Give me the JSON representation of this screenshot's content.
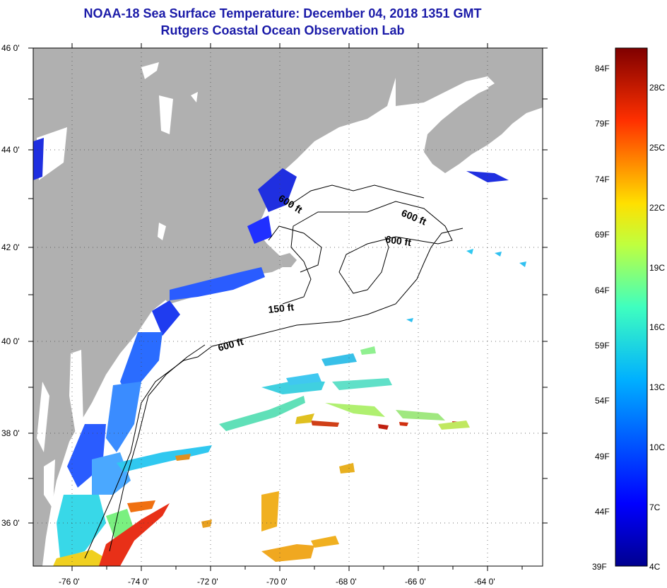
{
  "title": {
    "line1": "NOAA-18 Sea Surface Temperature:  December 04, 2018 1351 GMT",
    "line2": "Rutgers Coastal Ocean Observation Lab"
  },
  "map": {
    "lat_labels": [
      "46 0'",
      "44 0'",
      "42 0'",
      "40 0'",
      "38 0'",
      "36 0'"
    ],
    "lon_labels": [
      "-76 0'",
      "-74 0'",
      "-72 0'",
      "-70 0'",
      "-68 0'",
      "-66 0'",
      "-64 0'"
    ],
    "contour_labels": [
      "600 ft",
      "600 ft",
      "600 ft",
      "150 ft",
      "600 ft"
    ],
    "colors": {
      "land": "#b0b0b0",
      "ocean": "#ffffff",
      "title": "#1a1aa8"
    }
  },
  "colorbar": {
    "fahrenheit": [
      "84F",
      "79F",
      "74F",
      "69F",
      "64F",
      "59F",
      "54F",
      "49F",
      "44F",
      "39F"
    ],
    "celsius": [
      "28C",
      "25C",
      "22C",
      "19C",
      "16C",
      "13C",
      "10C",
      "7C",
      "4C"
    ],
    "range_celsius": [
      4,
      30
    ]
  }
}
